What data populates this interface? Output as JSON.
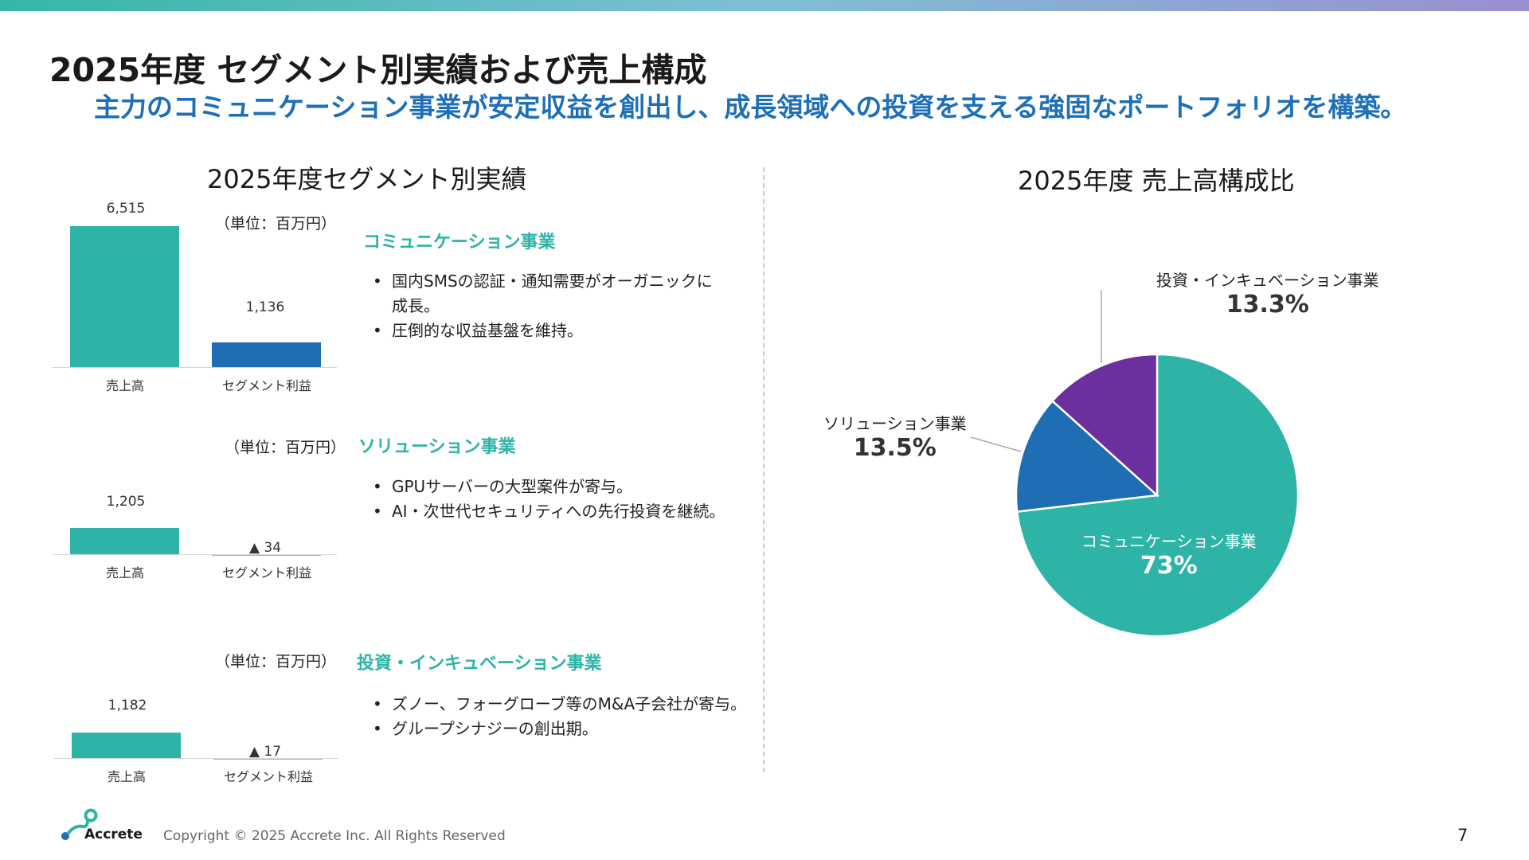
{
  "title": "2025年度 セグメント別実績および売上構成",
  "subtitle": "主力のコミュニケーション事業が安定収益を創出し、成長領域への投資を支える強固なポートフォリオを構築。",
  "left_title": "2025年度セグメント別実績",
  "right_title": "2025年度 売上高構成比",
  "unit_label": "（単位：百万円）",
  "segments": [
    {
      "name": "コミュニケーション事業",
      "bullets": [
        "国内SMSの認証・通知需要がオーガニックに",
        "成長。",
        "圧倒的な収益基盤を維持。"
      ],
      "chart_data": {
        "type": "bar",
        "categories": [
          "売上高",
          "セグメント利益"
        ],
        "values": [
          6515,
          1136
        ],
        "value_labels": [
          "6,515",
          "1,136"
        ]
      }
    },
    {
      "name": "ソリューション事業",
      "bullets": [
        "GPUサーバーの大型案件が寄与。",
        "AI・次世代セキュリティへの先行投資を継続。"
      ],
      "chart_data": {
        "type": "bar",
        "categories": [
          "売上高",
          "セグメント利益"
        ],
        "values": [
          1205,
          -34
        ],
        "value_labels": [
          "1,205",
          "▲ 34"
        ]
      }
    },
    {
      "name": "投資・インキュベーション事業",
      "bullets": [
        "ズノー、フォーグローブ等のM&A子会社が寄与。",
        "グループシナジーの創出期。"
      ],
      "chart_data": {
        "type": "bar",
        "categories": [
          "売上高",
          "セグメント利益"
        ],
        "values": [
          1182,
          -17
        ],
        "value_labels": [
          "1,182",
          "▲ 17"
        ]
      }
    }
  ],
  "pie": {
    "chart_data": {
      "type": "pie",
      "labels": [
        "コミュニケーション事業",
        "ソリューション事業",
        "投資・インキュベーション事業"
      ],
      "values": [
        73,
        13.5,
        13.3
      ],
      "value_labels": [
        "73%",
        "13.5%",
        "13.3%"
      ],
      "colors": [
        "#2db4a6",
        "#1f6db3",
        "#6b2f9e"
      ]
    }
  },
  "footer": {
    "logo_text": "Accrete",
    "copyright": "Copyright © 2025 Accrete Inc. All Rights Reserved",
    "page_number": "7"
  }
}
